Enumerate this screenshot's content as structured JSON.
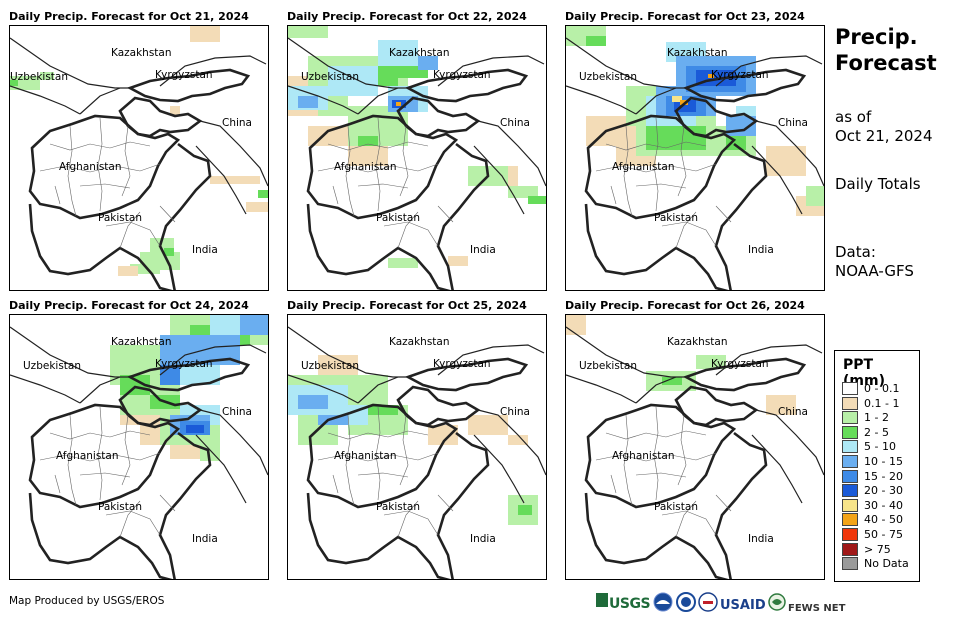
{
  "panels": [
    {
      "title": "Daily Precip. Forecast for Oct 21, 2024",
      "date": "Oct 21, 2024"
    },
    {
      "title": "Daily Precip. Forecast for Oct 22, 2024",
      "date": "Oct 22, 2024"
    },
    {
      "title": "Daily Precip. Forecast for Oct 23, 2024",
      "date": "Oct 23, 2024"
    },
    {
      "title": "Daily Precip. Forecast for Oct 24, 2024",
      "date": "Oct 24, 2024"
    },
    {
      "title": "Daily Precip. Forecast for Oct 25, 2024",
      "date": "Oct 25, 2024"
    },
    {
      "title": "Daily Precip. Forecast for Oct 26, 2024",
      "date": "Oct 26, 2024"
    }
  ],
  "map_labels": {
    "kazakhstan": "Kazakhstan",
    "uzbekistan": "Uzbekistan",
    "kyrgyzstan": "Kyrgyzstan",
    "china": "China",
    "afghanistan": "Afghanistan",
    "pakistan": "Pakistan",
    "india": "India"
  },
  "sidebar": {
    "title_line1": "Precip.",
    "title_line2": "Forecast",
    "asof_line1": "as of",
    "asof_line2": "Oct 21, 2024",
    "totals": "Daily Totals",
    "data_line1": "Data:",
    "data_line2": "NOAA-GFS"
  },
  "legend": {
    "title": "PPT (mm)",
    "items": [
      {
        "label": "0 - 0.1",
        "color": "#ffffff"
      },
      {
        "label": "0.1 - 1",
        "color": "#f3dcb7"
      },
      {
        "label": "1 - 2",
        "color": "#b8f0a8"
      },
      {
        "label": "2 - 5",
        "color": "#66dc5a"
      },
      {
        "label": "5 - 10",
        "color": "#aee8f6"
      },
      {
        "label": "10 - 15",
        "color": "#6aaef0"
      },
      {
        "label": "15 - 20",
        "color": "#3e8ae6"
      },
      {
        "label": "20 - 30",
        "color": "#1a5ad8"
      },
      {
        "label": "30 - 40",
        "color": "#f7e48a"
      },
      {
        "label": "40 - 50",
        "color": "#f4a418"
      },
      {
        "label": "50 - 75",
        "color": "#f0360a"
      },
      {
        "label": "> 75",
        "color": "#a01818"
      },
      {
        "label": "No Data",
        "color": "#9a9a9a"
      }
    ]
  },
  "credit": "Map Produced by USGS/EROS",
  "logos": {
    "usgs": "USGS",
    "usaid": "USAID",
    "fewsnet": "FEWS NET"
  },
  "icons": {
    "noaa": "noaa-icon",
    "nws": "nws-icon",
    "usaid_seal": "usaid-seal-icon",
    "fewsnet_globe": "fewsnet-globe-icon"
  }
}
